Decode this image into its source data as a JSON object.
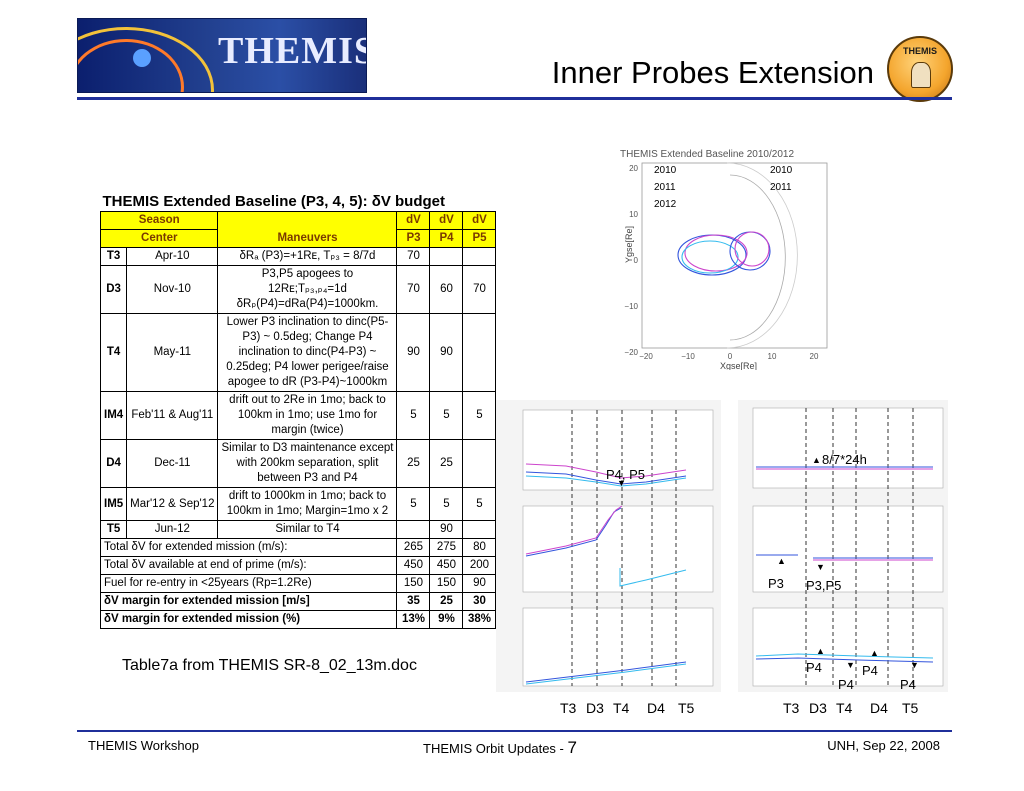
{
  "header": {
    "logo_text": "THEMIS",
    "title": "Inner Probes Extension",
    "badge_text": "THEMIS"
  },
  "table": {
    "title": "THEMIS Extended Baseline (P3, 4, 5): δV budget",
    "headers": {
      "season_center": "Season Center",
      "maneuvers": "Maneuvers",
      "dv_p3": "dV P3",
      "dv_p4": "dV P4",
      "dv_p5": "dV P5",
      "dv": "dV",
      "p3": "P3",
      "p4": "P4",
      "p5": "P5",
      "season": "Season",
      "center": "Center"
    },
    "rows": [
      {
        "event": "T3",
        "date": "Apr-10",
        "maneuver": "δRₐ (P3)=+1Rᴇ, Tₚ₃ = 8/7d",
        "p3": "70",
        "p4": "",
        "p5": ""
      },
      {
        "event": "D3",
        "date": "Nov-10",
        "maneuver": "P3,P5 apogees to 12Rᴇ;Tₚ₃,ₚ₄=1d δRₚ(P4)=dRa(P4)=1000km.",
        "p3": "70",
        "p4": "60",
        "p5": "70"
      },
      {
        "event": "T4",
        "date": "May-11",
        "maneuver": "Lower P3 inclination to dinc(P5-P3) ~ 0.5deg; Change P4 inclination to dinc(P4-P3) ~ 0.25deg; P4 lower perigee/raise apogee to dR (P3-P4)~1000km",
        "p3": "90",
        "p4": "90",
        "p5": ""
      },
      {
        "event": "IM4",
        "date": "Feb'11 & Aug'11",
        "maneuver": "drift out to 2Re in 1mo; back to 100km in 1mo; use 1mo for margin (twice)",
        "p3": "5",
        "p4": "5",
        "p5": "5"
      },
      {
        "event": "D4",
        "date": "Dec-11",
        "maneuver": "Similar to D3 maintenance except with 200km separation, split between P3 and P4",
        "p3": "25",
        "p4": "25",
        "p5": ""
      },
      {
        "event": "IM5",
        "date": "Mar'12 & Sep'12",
        "maneuver": "drift to 1000km in 1mo; back to 100km in 1mo; Margin=1mo x 2",
        "p3": "5",
        "p4": "5",
        "p5": "5"
      },
      {
        "event": "T5",
        "date": "Jun-12",
        "maneuver": "Similar to T4",
        "p3": "",
        "p4": "90",
        "p5": ""
      }
    ],
    "totals": [
      {
        "label": "Total δV for extended mission (m/s):",
        "p3": "265",
        "p4": "275",
        "p5": "80",
        "bold": false
      },
      {
        "label": "Total δV available at end of prime (m/s):",
        "p3": "450",
        "p4": "450",
        "p5": "200",
        "bold": false
      },
      {
        "label": "Fuel for re-entry in <25years (Rp=1.2Re)",
        "p3": "150",
        "p4": "150",
        "p5": "90",
        "bold": false
      },
      {
        "label": "δV margin for extended mission [m/s]",
        "p3": "35",
        "p4": "25",
        "p5": "30",
        "bold": true
      },
      {
        "label": "δV margin for extended mission (%)",
        "p3": "13%",
        "p4": "9%",
        "p5": "38%",
        "bold": true
      }
    ],
    "caption": "Table7a from THEMIS SR-8_02_13m.doc"
  },
  "orbit_plot": {
    "title": "THEMIS Extended Baseline 2010/2012",
    "legend_left": [
      "2010",
      "2011",
      "2012"
    ],
    "legend_right": [
      "2010",
      "2011"
    ],
    "ylabel": "Ygse[Re]",
    "xlabel": "Xgse[Re]",
    "yticks": [
      "20",
      "10",
      "0",
      "−10",
      "−20"
    ],
    "xticks": [
      "−20",
      "−10",
      "0",
      "10",
      "20"
    ],
    "colors": {
      "blue": "#3355dd",
      "magenta": "#cc44cc",
      "cyan": "#33bbee",
      "gray": "#bbbbbb"
    }
  },
  "annotations": {
    "p4_p5": "P4, P5",
    "date_mark": "8/7*24h",
    "p3": "P3",
    "p3_p5": "P3,P5",
    "p4_a": "P4",
    "p4_b": "P4",
    "p4_c": "P4",
    "p4_d": "P4"
  },
  "bottom_labels": {
    "left": [
      "T3",
      "D3",
      "T4",
      "D4",
      "T5"
    ],
    "right": [
      "T3",
      "D3",
      "T4",
      "D4",
      "T5"
    ]
  },
  "footer": {
    "left": "THEMIS Workshop",
    "center": "THEMIS Orbit Updates - ",
    "page": "7",
    "right": "UNH, Sep 22, 2008"
  }
}
